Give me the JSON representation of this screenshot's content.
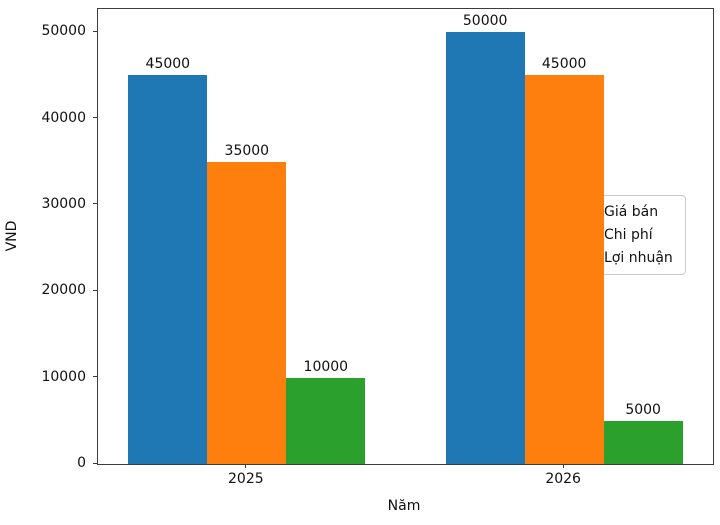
{
  "chart_data": {
    "type": "bar",
    "categories": [
      "2025",
      "2026"
    ],
    "series": [
      {
        "name": "Giá bán",
        "color": "#1f77b4",
        "values": [
          45000,
          50000
        ]
      },
      {
        "name": "Chi phí",
        "color": "#ff7f0e",
        "values": [
          35000,
          45000
        ]
      },
      {
        "name": "Lợi nhuận",
        "color": "#2ca02c",
        "values": [
          10000,
          5000
        ]
      }
    ],
    "bar_value_labels": [
      [
        "45000",
        "50000"
      ],
      [
        "35000",
        "45000"
      ],
      [
        "10000",
        "5000"
      ]
    ],
    "title": "",
    "xlabel": "Năm",
    "ylabel": "VND",
    "ylim": [
      0,
      52700
    ],
    "yticks": [
      "0",
      "10000",
      "20000",
      "30000",
      "40000",
      "50000"
    ],
    "grid": "off",
    "legend_position": "center-right",
    "legend_entries": [
      "Giá bán",
      "Chi phí",
      "Lợi nhuận"
    ]
  }
}
